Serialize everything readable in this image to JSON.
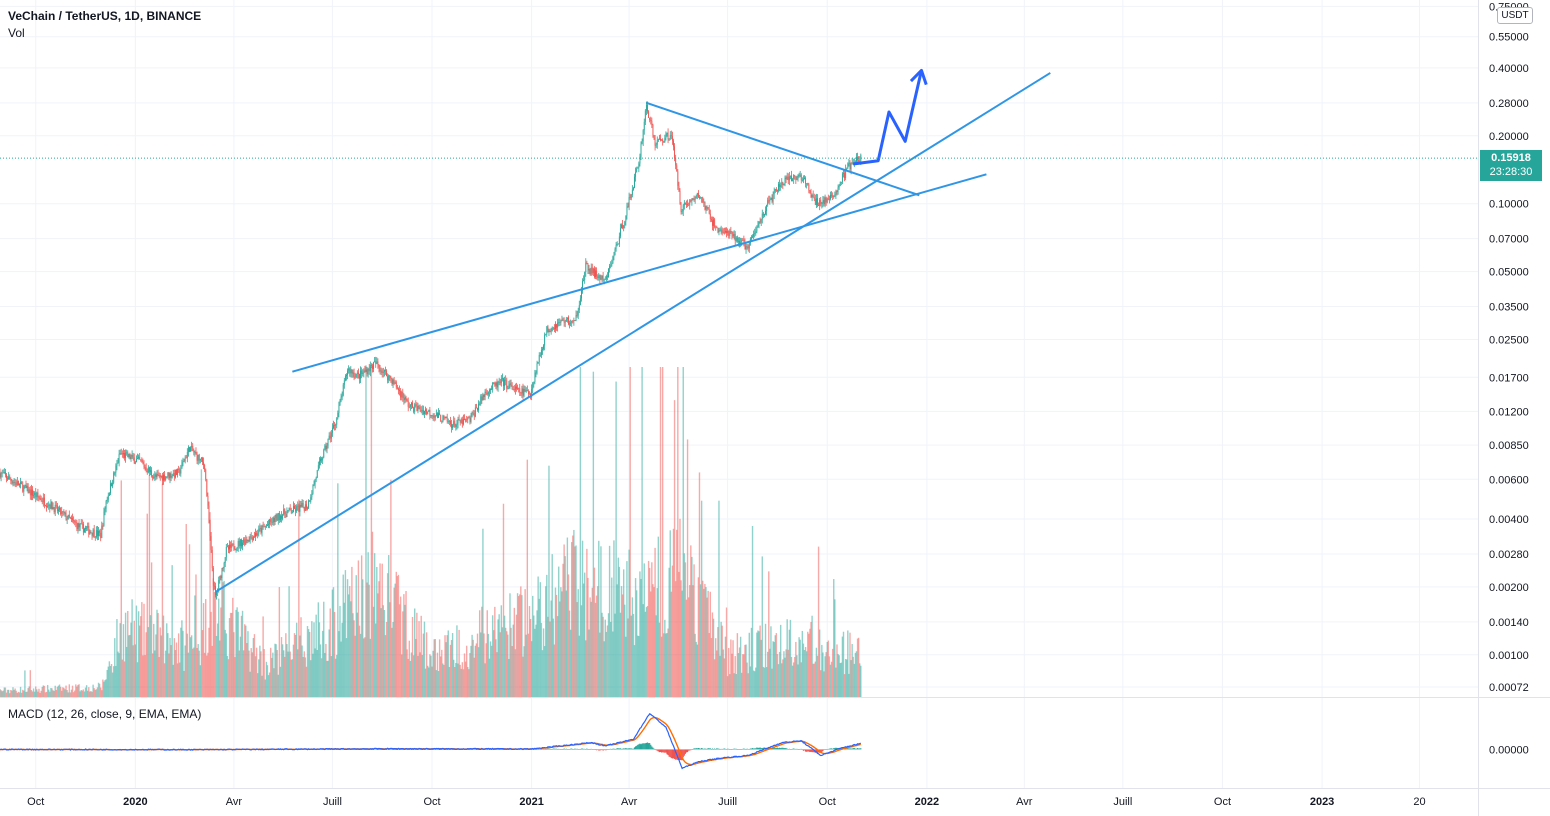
{
  "header": {
    "title": "VeChain / TetherUS, 1D, BINANCE",
    "vol_label": "Vol",
    "macd_label": "MACD (12, 26, close, 9, EMA, EMA)"
  },
  "price_axis": {
    "currency": "USDT",
    "labels": [
      "0.75000",
      "0.55000",
      "0.40000",
      "0.28000",
      "0.20000",
      "0.10000",
      "0.07000",
      "0.05000",
      "0.03500",
      "0.02500",
      "0.01700",
      "0.01200",
      "0.00850",
      "0.00600",
      "0.00400",
      "0.00280",
      "0.00200",
      "0.00140",
      "0.00100",
      "0.00072"
    ],
    "last_price": "0.15918",
    "countdown": "23:28:30",
    "macd_label": "0.00000",
    "scale": "log"
  },
  "time_axis": {
    "labels": [
      {
        "text": "Oct",
        "major": false
      },
      {
        "text": "2020",
        "major": true
      },
      {
        "text": "Avr",
        "major": false
      },
      {
        "text": "Juill",
        "major": false
      },
      {
        "text": "Oct",
        "major": false
      },
      {
        "text": "2021",
        "major": true
      },
      {
        "text": "Avr",
        "major": false
      },
      {
        "text": "Juill",
        "major": false
      },
      {
        "text": "Oct",
        "major": false
      },
      {
        "text": "2022",
        "major": true
      },
      {
        "text": "Avr",
        "major": false
      },
      {
        "text": "Juill",
        "major": false
      },
      {
        "text": "Oct",
        "major": false
      },
      {
        "text": "2023",
        "major": true
      },
      {
        "text": "20",
        "major": false
      }
    ]
  },
  "colors": {
    "up": "#26a69a",
    "down": "#ef5350",
    "trendline": "#2f96e6",
    "projection": "#2962ff",
    "macd": "#2962ff",
    "signal": "#ff6d00"
  },
  "chart_data": {
    "type": "candlestick",
    "symbol": "VeChain / TetherUS",
    "interval": "1D",
    "exchange": "BINANCE",
    "price_scale": "log",
    "ylim": [
      0.00065,
      0.8
    ],
    "x_range": [
      "2019-08-29",
      "2023-05-25"
    ],
    "price_path": [
      [
        "2019-08-29",
        0.0064
      ],
      [
        "2019-09-20",
        0.0055
      ],
      [
        "2019-10-15",
        0.0046
      ],
      [
        "2019-11-10",
        0.0037
      ],
      [
        "2019-11-30",
        0.0034
      ],
      [
        "2019-12-05",
        0.0048
      ],
      [
        "2019-12-18",
        0.0078
      ],
      [
        "2020-01-05",
        0.0072
      ],
      [
        "2020-01-20",
        0.0061
      ],
      [
        "2020-02-10",
        0.0064
      ],
      [
        "2020-02-20",
        0.0083
      ],
      [
        "2020-03-05",
        0.0069
      ],
      [
        "2020-03-13",
        0.0021
      ],
      [
        "2020-03-15",
        0.0018
      ],
      [
        "2020-03-25",
        0.0029
      ],
      [
        "2020-04-20",
        0.0034
      ],
      [
        "2020-05-15",
        0.0042
      ],
      [
        "2020-06-08",
        0.0046
      ],
      [
        "2020-06-20",
        0.0072
      ],
      [
        "2020-07-05",
        0.0112
      ],
      [
        "2020-07-15",
        0.0185
      ],
      [
        "2020-07-25",
        0.0172
      ],
      [
        "2020-08-10",
        0.0196
      ],
      [
        "2020-08-25",
        0.0165
      ],
      [
        "2020-09-10",
        0.0127
      ],
      [
        "2020-10-01",
        0.0118
      ],
      [
        "2020-10-20",
        0.0105
      ],
      [
        "2020-11-05",
        0.011
      ],
      [
        "2020-11-20",
        0.0148
      ],
      [
        "2020-12-05",
        0.0162
      ],
      [
        "2020-12-20",
        0.0147
      ],
      [
        "2020-12-31",
        0.0145
      ],
      [
        "2021-01-05",
        0.0185
      ],
      [
        "2021-01-15",
        0.0276
      ],
      [
        "2021-01-31",
        0.0305
      ],
      [
        "2021-02-10",
        0.0295
      ],
      [
        "2021-02-20",
        0.0525
      ],
      [
        "2021-03-10",
        0.045
      ],
      [
        "2021-03-20",
        0.064
      ],
      [
        "2021-03-30",
        0.094
      ],
      [
        "2021-04-10",
        0.153
      ],
      [
        "2021-04-17",
        0.275
      ],
      [
        "2021-04-25",
        0.185
      ],
      [
        "2021-05-10",
        0.205
      ],
      [
        "2021-05-19",
        0.096
      ],
      [
        "2021-06-05",
        0.109
      ],
      [
        "2021-06-20",
        0.078
      ],
      [
        "2021-07-05",
        0.072
      ],
      [
        "2021-07-20",
        0.064
      ],
      [
        "2021-08-05",
        0.096
      ],
      [
        "2021-08-20",
        0.124
      ],
      [
        "2021-09-07",
        0.133
      ],
      [
        "2021-09-20",
        0.101
      ],
      [
        "2021-10-05",
        0.105
      ],
      [
        "2021-10-20",
        0.145
      ],
      [
        "2021-11-01",
        0.1592
      ]
    ],
    "volume_ylim": [
      0,
      1
    ],
    "volume_profile": [
      [
        "2019-08-29",
        0.04
      ],
      [
        "2019-12-01",
        0.06
      ],
      [
        "2019-12-20",
        0.42
      ],
      [
        "2020-02-25",
        0.3
      ],
      [
        "2020-03-13",
        0.55
      ],
      [
        "2020-05-01",
        0.2
      ],
      [
        "2020-07-01",
        0.45
      ],
      [
        "2020-08-10",
        0.7
      ],
      [
        "2020-10-01",
        0.25
      ],
      [
        "2021-01-05",
        0.5
      ],
      [
        "2021-02-10",
        0.7
      ],
      [
        "2021-04-15",
        0.6
      ],
      [
        "2021-05-19",
        0.75
      ],
      [
        "2021-07-01",
        0.25
      ],
      [
        "2021-09-07",
        0.35
      ],
      [
        "2021-11-01",
        0.25
      ]
    ],
    "macd_ylim": [
      -0.045,
      0.06
    ],
    "macd_path": [
      [
        "2019-08-29",
        0.0
      ],
      [
        "2020-03-01",
        -0.0003
      ],
      [
        "2020-08-20",
        0.0008
      ],
      [
        "2021-01-01",
        0.0005
      ],
      [
        "2021-02-25",
        0.008
      ],
      [
        "2021-03-10",
        0.004
      ],
      [
        "2021-04-05",
        0.012
      ],
      [
        "2021-04-20",
        0.042
      ],
      [
        "2021-05-05",
        0.026
      ],
      [
        "2021-05-20",
        -0.022
      ],
      [
        "2021-06-05",
        -0.014
      ],
      [
        "2021-06-25",
        -0.01
      ],
      [
        "2021-07-20",
        -0.007
      ],
      [
        "2021-08-20",
        0.008
      ],
      [
        "2021-09-07",
        0.01
      ],
      [
        "2021-09-25",
        -0.007
      ],
      [
        "2021-10-15",
        0.002
      ],
      [
        "2021-11-01",
        0.007
      ]
    ],
    "trendlines": [
      {
        "from": [
          "2020-03-15",
          0.0019
        ],
        "to": [
          "2022-04-25",
          0.38
        ]
      },
      {
        "from": [
          "2020-05-25",
          0.018
        ],
        "to": [
          "2022-02-25",
          0.135
        ]
      },
      {
        "from": [
          "2021-04-17",
          0.28
        ],
        "to": [
          "2021-12-25",
          0.109
        ]
      }
    ],
    "projection": [
      [
        "2021-10-25",
        0.15
      ],
      [
        "2021-11-17",
        0.155
      ],
      [
        "2021-11-27",
        0.255
      ],
      [
        "2021-12-12",
        0.189
      ],
      [
        "2021-12-27",
        0.39
      ]
    ]
  }
}
